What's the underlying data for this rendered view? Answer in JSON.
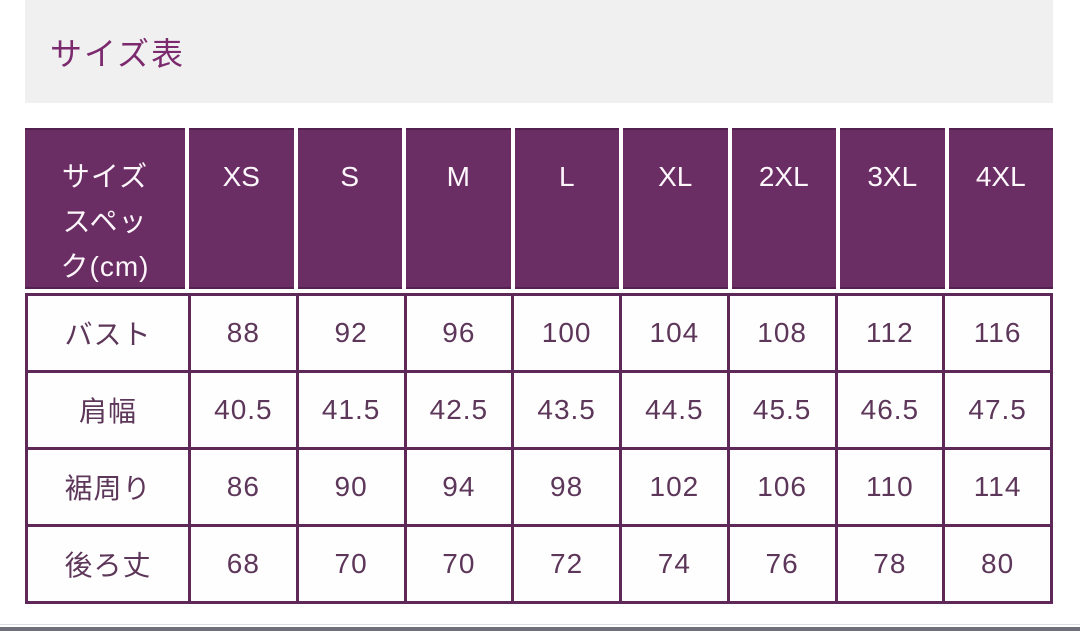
{
  "page": {
    "title": "サイズ表"
  },
  "table": {
    "unit_note": "cm",
    "header": {
      "spec_label": "サイズ\nスペッ\nク(cm)",
      "sizes": [
        "XS",
        "S",
        "M",
        "L",
        "XL",
        "2XL",
        "3XL",
        "4XL"
      ]
    },
    "rows": [
      {
        "label": "バスト",
        "values": [
          "88",
          "92",
          "96",
          "100",
          "104",
          "108",
          "112",
          "116"
        ]
      },
      {
        "label": "肩幅",
        "values": [
          "40.5",
          "41.5",
          "42.5",
          "43.5",
          "44.5",
          "45.5",
          "46.5",
          "47.5"
        ]
      },
      {
        "label": "裾周り",
        "values": [
          "86",
          "90",
          "94",
          "98",
          "102",
          "106",
          "110",
          "114"
        ]
      },
      {
        "label": "後ろ丈",
        "values": [
          "68",
          "70",
          "70",
          "72",
          "74",
          "76",
          "78",
          "80"
        ]
      }
    ]
  },
  "colors": {
    "header_purple": "#6a2d64",
    "title_purple": "#7b2a6e",
    "body_border_purple": "#5e2958",
    "body_text_purple": "#5d3759",
    "band_gray": "#f1f0f1",
    "footer_gray": "#70707a"
  }
}
